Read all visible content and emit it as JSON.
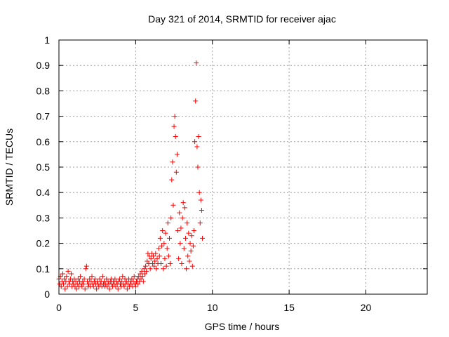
{
  "chart_data": {
    "type": "scatter",
    "title": "Day 321 of 2014, SRMTID for receiver ajac",
    "xlabel": "GPS time / hours",
    "ylabel": "SRMTID / TECUs",
    "xlim": [
      0,
      24
    ],
    "ylim": [
      0,
      1
    ],
    "x_ticks": [
      0,
      5,
      10,
      15,
      20
    ],
    "x_tick_labels": [
      "0",
      "5",
      "10",
      "15",
      "20"
    ],
    "y_ticks": [
      0,
      0.1,
      0.2,
      0.3,
      0.4,
      0.5,
      0.6,
      0.7,
      0.8,
      0.9,
      1
    ],
    "y_tick_labels": [
      "0",
      "0.1",
      "0.2",
      "0.3",
      "0.4",
      "0.5",
      "0.6",
      "0.7",
      "0.8",
      "0.9",
      "1"
    ],
    "grid": true,
    "marker": "+",
    "color": "#ff0000",
    "series": [
      {
        "name": "SRMTID",
        "points": [
          [
            0.0,
            0.06
          ],
          [
            0.05,
            0.04
          ],
          [
            0.1,
            0.07
          ],
          [
            0.15,
            0.03
          ],
          [
            0.2,
            0.05
          ],
          [
            0.25,
            0.08
          ],
          [
            0.3,
            0.04
          ],
          [
            0.35,
            0.06
          ],
          [
            0.4,
            0.02
          ],
          [
            0.45,
            0.05
          ],
          [
            0.5,
            0.07
          ],
          [
            0.55,
            0.03
          ],
          [
            0.6,
            0.09
          ],
          [
            0.65,
            0.05
          ],
          [
            0.7,
            0.04
          ],
          [
            0.75,
            0.06
          ],
          [
            0.8,
            0.08
          ],
          [
            0.85,
            0.03
          ],
          [
            0.9,
            0.05
          ],
          [
            0.95,
            0.04
          ],
          [
            1.0,
            0.06
          ],
          [
            1.05,
            0.03
          ],
          [
            1.1,
            0.05
          ],
          [
            1.15,
            0.02
          ],
          [
            1.2,
            0.04
          ],
          [
            1.25,
            0.06
          ],
          [
            1.3,
            0.03
          ],
          [
            1.35,
            0.05
          ],
          [
            1.4,
            0.07
          ],
          [
            1.45,
            0.04
          ],
          [
            1.5,
            0.03
          ],
          [
            1.55,
            0.05
          ],
          [
            1.6,
            0.04
          ],
          [
            1.65,
            0.06
          ],
          [
            1.7,
            0.02
          ],
          [
            1.75,
            0.1
          ],
          [
            1.8,
            0.11
          ],
          [
            1.85,
            0.05
          ],
          [
            1.9,
            0.03
          ],
          [
            1.95,
            0.04
          ],
          [
            2.0,
            0.06
          ],
          [
            2.05,
            0.03
          ],
          [
            2.1,
            0.05
          ],
          [
            2.15,
            0.07
          ],
          [
            2.2,
            0.04
          ],
          [
            2.25,
            0.03
          ],
          [
            2.3,
            0.05
          ],
          [
            2.35,
            0.06
          ],
          [
            2.4,
            0.04
          ],
          [
            2.45,
            0.02
          ],
          [
            2.5,
            0.05
          ],
          [
            2.55,
            0.04
          ],
          [
            2.6,
            0.03
          ],
          [
            2.65,
            0.06
          ],
          [
            2.7,
            0.04
          ],
          [
            2.75,
            0.05
          ],
          [
            2.8,
            0.03
          ],
          [
            2.85,
            0.07
          ],
          [
            2.9,
            0.04
          ],
          [
            2.95,
            0.05
          ],
          [
            3.0,
            0.03
          ],
          [
            3.05,
            0.04
          ],
          [
            3.1,
            0.06
          ],
          [
            3.15,
            0.03
          ],
          [
            3.2,
            0.05
          ],
          [
            3.25,
            0.04
          ],
          [
            3.3,
            0.02
          ],
          [
            3.35,
            0.05
          ],
          [
            3.4,
            0.06
          ],
          [
            3.45,
            0.04
          ],
          [
            3.5,
            0.03
          ],
          [
            3.55,
            0.05
          ],
          [
            3.6,
            0.04
          ],
          [
            3.65,
            0.06
          ],
          [
            3.7,
            0.03
          ],
          [
            3.75,
            0.05
          ],
          [
            3.8,
            0.04
          ],
          [
            3.85,
            0.02
          ],
          [
            3.9,
            0.05
          ],
          [
            3.95,
            0.06
          ],
          [
            4.0,
            0.04
          ],
          [
            4.05,
            0.03
          ],
          [
            4.1,
            0.05
          ],
          [
            4.15,
            0.07
          ],
          [
            4.2,
            0.04
          ],
          [
            4.25,
            0.03
          ],
          [
            4.3,
            0.06
          ],
          [
            4.35,
            0.04
          ],
          [
            4.4,
            0.05
          ],
          [
            4.45,
            0.02
          ],
          [
            4.5,
            0.04
          ],
          [
            4.55,
            0.06
          ],
          [
            4.6,
            0.03
          ],
          [
            4.65,
            0.05
          ],
          [
            4.7,
            0.04
          ],
          [
            4.75,
            0.06
          ],
          [
            4.8,
            0.03
          ],
          [
            4.85,
            0.05
          ],
          [
            4.9,
            0.07
          ],
          [
            4.95,
            0.04
          ],
          [
            5.0,
            0.03
          ],
          [
            5.05,
            0.05
          ],
          [
            5.1,
            0.06
          ],
          [
            5.15,
            0.04
          ],
          [
            5.2,
            0.07
          ],
          [
            5.25,
            0.05
          ],
          [
            5.3,
            0.08
          ],
          [
            5.35,
            0.06
          ],
          [
            5.4,
            0.09
          ],
          [
            5.45,
            0.07
          ],
          [
            5.5,
            0.05
          ],
          [
            5.55,
            0.1
          ],
          [
            5.6,
            0.08
          ],
          [
            5.65,
            0.11
          ],
          [
            5.7,
            0.09
          ],
          [
            5.75,
            0.13
          ],
          [
            5.8,
            0.16
          ],
          [
            5.85,
            0.12
          ],
          [
            5.9,
            0.15
          ],
          [
            5.95,
            0.1
          ],
          [
            6.0,
            0.14
          ],
          [
            6.05,
            0.16
          ],
          [
            6.1,
            0.12
          ],
          [
            6.15,
            0.15
          ],
          [
            6.2,
            0.11
          ],
          [
            6.25,
            0.13
          ],
          [
            6.3,
            0.16
          ],
          [
            6.35,
            0.1
          ],
          [
            6.4,
            0.14
          ],
          [
            6.45,
            0.12
          ],
          [
            6.5,
            0.18
          ],
          [
            6.55,
            0.15
          ],
          [
            6.6,
            0.22
          ],
          [
            6.65,
            0.12
          ],
          [
            6.7,
            0.19
          ],
          [
            6.75,
            0.25
          ],
          [
            6.8,
            0.1
          ],
          [
            6.85,
            0.2
          ],
          [
            6.9,
            0.14
          ],
          [
            6.95,
            0.24
          ],
          [
            7.0,
            0.11
          ],
          [
            7.05,
            0.18
          ],
          [
            7.1,
            0.28
          ],
          [
            7.15,
            0.15
          ],
          [
            7.2,
            0.22
          ],
          [
            7.25,
            0.12
          ],
          [
            7.3,
            0.3
          ],
          [
            7.35,
            0.45
          ],
          [
            7.4,
            0.52
          ],
          [
            7.45,
            0.35
          ],
          [
            7.5,
            0.66
          ],
          [
            7.55,
            0.7
          ],
          [
            7.6,
            0.62
          ],
          [
            7.65,
            0.48
          ],
          [
            7.7,
            0.55
          ],
          [
            7.75,
            0.25
          ],
          [
            7.8,
            0.14
          ],
          [
            7.85,
            0.32
          ],
          [
            7.9,
            0.2
          ],
          [
            7.95,
            0.26
          ],
          [
            8.0,
            0.12
          ],
          [
            8.05,
            0.3
          ],
          [
            8.1,
            0.36
          ],
          [
            8.15,
            0.18
          ],
          [
            8.2,
            0.34
          ],
          [
            8.25,
            0.22
          ],
          [
            8.3,
            0.1
          ],
          [
            8.35,
            0.28
          ],
          [
            8.4,
            0.15
          ],
          [
            8.45,
            0.24
          ],
          [
            8.5,
            0.13
          ],
          [
            8.55,
            0.2
          ],
          [
            8.6,
            0.17
          ],
          [
            8.65,
            0.23
          ],
          [
            8.7,
            0.11
          ],
          [
            8.75,
            0.19
          ],
          [
            8.8,
            0.25
          ],
          [
            8.85,
            0.6
          ],
          [
            8.9,
            0.76
          ],
          [
            8.95,
            0.91
          ],
          [
            9.0,
            0.58
          ],
          [
            9.05,
            0.5
          ],
          [
            9.1,
            0.62
          ],
          [
            9.15,
            0.4
          ],
          [
            9.2,
            0.28
          ],
          [
            9.25,
            0.37
          ],
          [
            9.3,
            0.33
          ],
          [
            9.35,
            0.22
          ]
        ]
      }
    ]
  }
}
